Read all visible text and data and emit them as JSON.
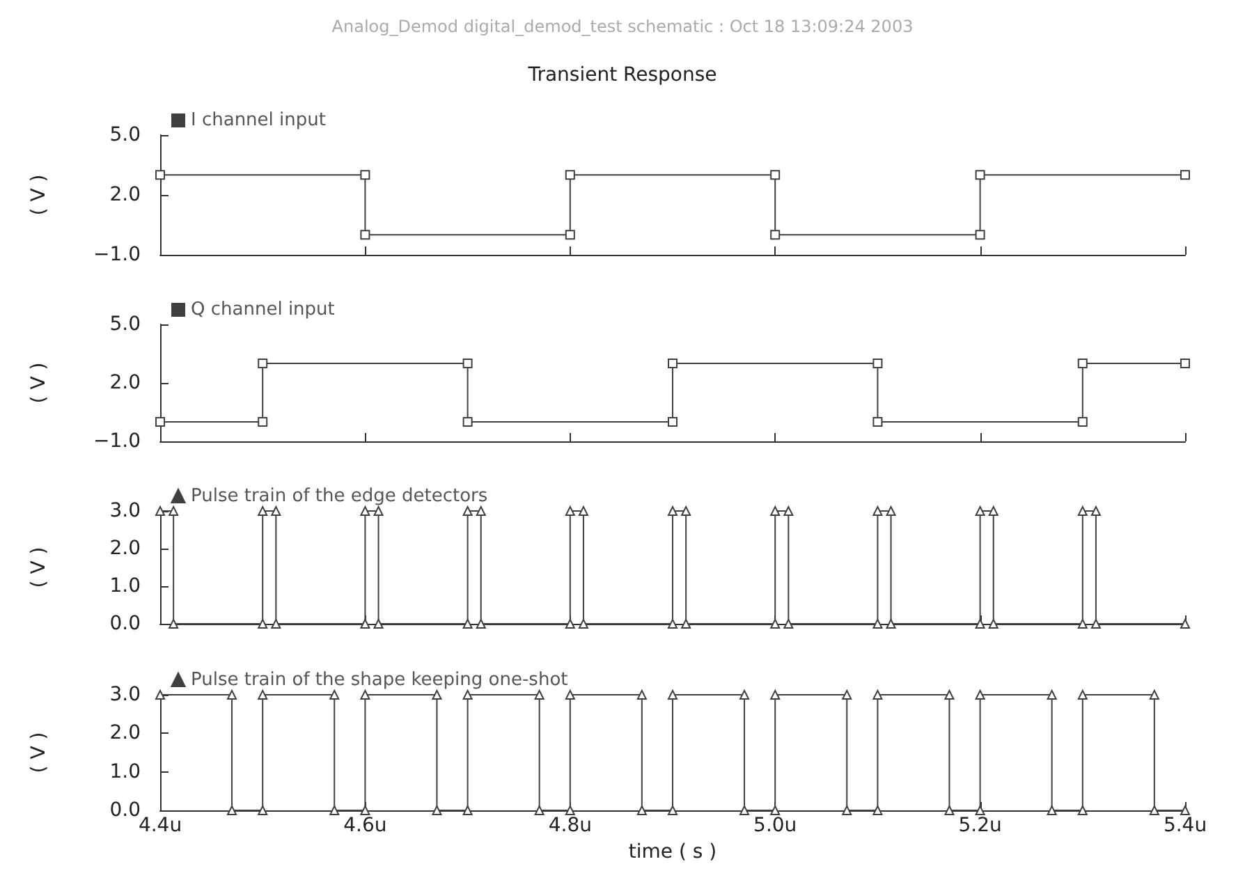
{
  "chart_data": [
    {
      "type": "line",
      "title": "Transient Response",
      "subtitle": "Analog_Demod digital_demod_test schematic : Oct 18 13:09:24 2003",
      "ylabel": "( V )",
      "series": [
        {
          "name": "I channel input",
          "color": "#404040",
          "x": [
            4.4,
            4.6,
            4.6,
            4.8,
            4.8,
            5.0,
            5.0,
            5.2,
            5.2,
            5.4
          ],
          "values": [
            3,
            3,
            0,
            0,
            3,
            3,
            0,
            0,
            3,
            3
          ]
        }
      ],
      "xlim": [
        4.4,
        5.4
      ],
      "xticks": [
        {
          "value": 4.4,
          "label": null
        },
        {
          "value": 4.6,
          "label": null
        },
        {
          "value": 4.8,
          "label": null
        },
        {
          "value": 5.0,
          "label": null
        },
        {
          "value": 5.2,
          "label": null
        },
        {
          "value": 5.4,
          "label": null
        }
      ],
      "ylim": [
        -1,
        5
      ],
      "yticks": [
        {
          "value": -1,
          "label": "−1.0"
        },
        {
          "value": 2,
          "label": "2.0"
        },
        {
          "value": 5,
          "label": "5.0"
        }
      ],
      "tick_labels": "y",
      "grid": false,
      "legend": "top left",
      "marker": "square",
      "line_style": "solid"
    },
    {
      "type": "line",
      "ylabel": "( V )",
      "series": [
        {
          "name": "Q channel input",
          "color": "#404040",
          "x": [
            4.4,
            4.5,
            4.5,
            4.7,
            4.7,
            4.9,
            4.9,
            5.1,
            5.1,
            5.3,
            5.3,
            5.4
          ],
          "values": [
            0,
            0,
            3,
            3,
            0,
            0,
            3,
            3,
            0,
            0,
            3,
            3
          ]
        }
      ],
      "xlim": [
        4.4,
        5.4
      ],
      "xticks": [
        {
          "value": 4.4,
          "label": null
        },
        {
          "value": 4.6,
          "label": null
        },
        {
          "value": 4.8,
          "label": null
        },
        {
          "value": 5.0,
          "label": null
        },
        {
          "value": 5.2,
          "label": null
        },
        {
          "value": 5.4,
          "label": null
        }
      ],
      "ylim": [
        -1,
        5
      ],
      "yticks": [
        {
          "value": -1,
          "label": "−1.0"
        },
        {
          "value": 2,
          "label": "2.0"
        },
        {
          "value": 5,
          "label": "5.0"
        }
      ],
      "tick_labels": "y",
      "grid": false,
      "legend": "top left",
      "marker": "square",
      "line_style": "solid"
    },
    {
      "type": "line",
      "ylabel": "( V )",
      "series": [
        {
          "name": "Pulse train of the edge detectors",
          "color": "#404040",
          "x": [
            4.4,
            4.413,
            4.413,
            4.5,
            4.5,
            4.513,
            4.513,
            4.6,
            4.6,
            4.613,
            4.613,
            4.7,
            4.7,
            4.713,
            4.713,
            4.8,
            4.8,
            4.813,
            4.813,
            4.9,
            4.9,
            4.913,
            4.913,
            5.0,
            5.0,
            5.013,
            5.013,
            5.1,
            5.1,
            5.113,
            5.113,
            5.2,
            5.2,
            5.213,
            5.213,
            5.3,
            5.3,
            5.313,
            5.313,
            5.4
          ],
          "values": [
            3,
            3,
            0,
            0,
            3,
            3,
            0,
            0,
            3,
            3,
            0,
            0,
            3,
            3,
            0,
            0,
            3,
            3,
            0,
            0,
            3,
            3,
            0,
            0,
            3,
            3,
            0,
            0,
            3,
            3,
            0,
            0,
            3,
            3,
            0,
            0,
            3,
            3,
            0,
            0
          ]
        }
      ],
      "xlim": [
        4.4,
        5.4
      ],
      "xticks": [
        {
          "value": 4.4,
          "label": null
        },
        {
          "value": 4.6,
          "label": null
        },
        {
          "value": 4.8,
          "label": null
        },
        {
          "value": 5.0,
          "label": null
        },
        {
          "value": 5.2,
          "label": null
        },
        {
          "value": 5.4,
          "label": null
        }
      ],
      "ylim": [
        0,
        3
      ],
      "yticks": [
        {
          "value": 0,
          "label": "0.0"
        },
        {
          "value": 1,
          "label": "1.0"
        },
        {
          "value": 2,
          "label": "2.0"
        },
        {
          "value": 3,
          "label": "3.0"
        }
      ],
      "tick_labels": "y",
      "grid": false,
      "legend": "top left",
      "marker": "triangle",
      "line_style": "solid"
    },
    {
      "type": "line",
      "ylabel": "( V )",
      "xlabel": "time ( s )",
      "series": [
        {
          "name": "Pulse train of the shape keeping one-shot",
          "color": "#404040",
          "x": [
            4.4,
            4.47,
            4.47,
            4.5,
            4.5,
            4.57,
            4.57,
            4.6,
            4.6,
            4.67,
            4.67,
            4.7,
            4.7,
            4.77,
            4.77,
            4.8,
            4.8,
            4.87,
            4.87,
            4.9,
            4.9,
            4.97,
            4.97,
            5.0,
            5.0,
            5.07,
            5.07,
            5.1,
            5.1,
            5.17,
            5.17,
            5.2,
            5.2,
            5.27,
            5.27,
            5.3,
            5.3,
            5.37,
            5.37,
            5.4
          ],
          "values": [
            3,
            3,
            0,
            0,
            3,
            3,
            0,
            0,
            3,
            3,
            0,
            0,
            3,
            3,
            0,
            0,
            3,
            3,
            0,
            0,
            3,
            3,
            0,
            0,
            3,
            3,
            0,
            0,
            3,
            3,
            0,
            0,
            3,
            3,
            0,
            0,
            3,
            3,
            0,
            0
          ]
        }
      ],
      "xlim": [
        4.4,
        5.4
      ],
      "xticks": [
        {
          "value": 4.4,
          "label": "4.4u"
        },
        {
          "value": 4.6,
          "label": "4.6u"
        },
        {
          "value": 4.8,
          "label": "4.8u"
        },
        {
          "value": 5.0,
          "label": "5.0u"
        },
        {
          "value": 5.2,
          "label": "5.2u"
        },
        {
          "value": 5.4,
          "label": "5.4u"
        }
      ],
      "ylim": [
        0,
        3
      ],
      "yticks": [
        {
          "value": 0,
          "label": "0.0"
        },
        {
          "value": 1,
          "label": "1.0"
        },
        {
          "value": 2,
          "label": "2.0"
        },
        {
          "value": 3,
          "label": "3.0"
        }
      ],
      "grid": false,
      "legend": "top left",
      "marker": "triangle",
      "line_style": "solid"
    }
  ]
}
